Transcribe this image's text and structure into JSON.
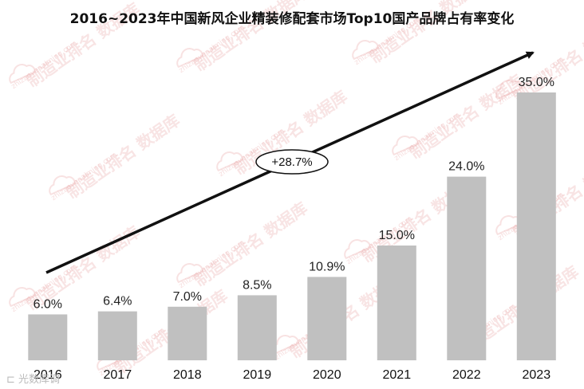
{
  "chart_data": {
    "type": "bar",
    "title": "2016~2023年中国新风企业精装修配套市场Top10国产品牌占有率变化",
    "categories": [
      "2016",
      "2017",
      "2018",
      "2019",
      "2020",
      "2021",
      "2022",
      "2023"
    ],
    "values": [
      6.0,
      6.4,
      7.0,
      8.5,
      10.9,
      15.0,
      24.0,
      35.0
    ],
    "value_labels": [
      "6.0%",
      "6.4%",
      "7.0%",
      "8.5%",
      "10.9%",
      "15.0%",
      "24.0%",
      "35.0%"
    ],
    "unit": "%",
    "ylim": [
      0,
      37.5
    ],
    "xlabel": "",
    "ylabel": "",
    "grid": false,
    "legend": "none",
    "annotation": {
      "label": "+28.7%",
      "kind": "trend-arrow"
    },
    "bar_color": "#c0c0c0"
  },
  "watermark": {
    "text": "制造业排名 数据库",
    "url": "zhizaoyepaiming.com"
  },
  "corner_mark": "⊏ 光数库调"
}
